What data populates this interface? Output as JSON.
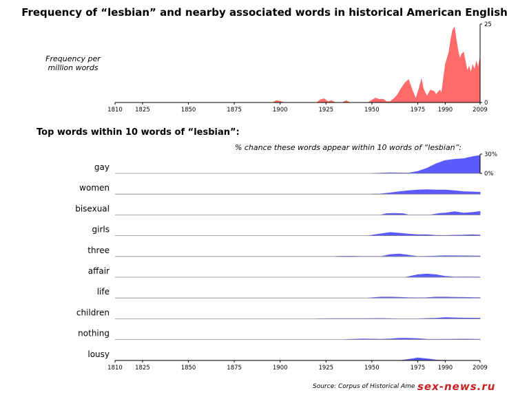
{
  "title": "Frequency of “lesbian” and nearby associated words in historical American English",
  "watermark": "sex-news.ru",
  "chart_data": [
    {
      "type": "area",
      "ylabel": "Frequency per million words",
      "color": "#ff6a6a",
      "xlim": [
        1810,
        2009
      ],
      "ylim": [
        0,
        25
      ],
      "yticks": [
        "25",
        "0"
      ],
      "xticks": [
        "1810",
        "1825",
        "1850",
        "1875",
        "1900",
        "1925",
        "1950",
        "1975",
        "1990",
        "2009"
      ],
      "x": [
        1896,
        1898,
        1900,
        1902,
        1920,
        1922,
        1924,
        1926,
        1928,
        1930,
        1934,
        1936,
        1938,
        1948,
        1950,
        1952,
        1954,
        1956,
        1958,
        1960,
        1962,
        1964,
        1966,
        1968,
        1970,
        1972,
        1974,
        1976,
        1977,
        1978,
        1980,
        1982,
        1984,
        1985,
        1987,
        1988,
        1990,
        1992,
        1993,
        1994,
        1995,
        1996,
        1997,
        1998,
        1999,
        2000,
        2001,
        2002,
        2003,
        2004,
        2005,
        2006,
        2007,
        2008,
        2009
      ],
      "values": [
        0,
        0.6,
        0.4,
        0,
        0,
        0.9,
        1.2,
        0.3,
        0.6,
        0,
        0,
        0.6,
        0,
        0,
        0.8,
        1.4,
        1.0,
        1.1,
        0.3,
        0.3,
        1.2,
        2.5,
        4.5,
        6.2,
        7.3,
        4.0,
        1.2,
        5.0,
        7.5,
        4.5,
        2.0,
        4.0,
        3.5,
        2.5,
        4.0,
        3.0,
        12.0,
        16.0,
        20.0,
        23.0,
        24.0,
        20.0,
        16.5,
        14.0,
        15.5,
        16.0,
        13.0,
        10.0,
        11.5,
        9.5,
        12.0,
        10.5,
        13.0,
        11.0,
        14.5
      ]
    },
    {
      "type": "area",
      "subtitle": "Top words within 10 words of “lesbian”:",
      "ylabel": "% chance these words appear within 10 words of “lesbian”:",
      "color": "#5a5aff",
      "xlim": [
        1810,
        2009
      ],
      "ylim": [
        0,
        30
      ],
      "yticks": [
        "30%",
        "0%"
      ],
      "xticks": [
        "1810",
        "1825",
        "1850",
        "1875",
        "1900",
        "1925",
        "1950",
        "1975",
        "1990",
        "2009"
      ],
      "series": [
        {
          "name": "gay",
          "x": [
            1950,
            1960,
            1970,
            1975,
            1980,
            1985,
            1990,
            1995,
            2000,
            2005,
            2009
          ],
          "values": [
            0,
            1,
            0.5,
            3,
            8,
            15,
            20,
            22,
            23,
            26,
            28
          ]
        },
        {
          "name": "women",
          "x": [
            1950,
            1955,
            1960,
            1965,
            1970,
            1975,
            1980,
            1985,
            1990,
            1995,
            2000,
            2005,
            2009
          ],
          "values": [
            0,
            0.4,
            2,
            4,
            5.5,
            6.5,
            7,
            6.5,
            6.5,
            5.5,
            4,
            3.5,
            3
          ]
        },
        {
          "name": "bisexual",
          "x": [
            1955,
            1958,
            1962,
            1967,
            1970,
            1978,
            1982,
            1987,
            1990,
            1995,
            2000,
            2005,
            2009
          ],
          "values": [
            0,
            2,
            2.5,
            2,
            0,
            0,
            0,
            2.5,
            3,
            5,
            3,
            4,
            5.5
          ]
        },
        {
          "name": "girls",
          "x": [
            1948,
            1955,
            1960,
            1965,
            1970,
            1975,
            1980,
            1985,
            1990,
            1995,
            2000,
            2005,
            2009
          ],
          "values": [
            0,
            3,
            5,
            4,
            2.5,
            1.5,
            1.5,
            0.5,
            0.3,
            0.8,
            1,
            1.5,
            1
          ]
        },
        {
          "name": "three",
          "x": [
            1930,
            1935,
            1940,
            1945,
            1955,
            1960,
            1965,
            1970,
            1975,
            1980,
            1985,
            1990,
            2000,
            2009
          ],
          "values": [
            0,
            0.4,
            0.4,
            0,
            0,
            3,
            4,
            2,
            0,
            0.3,
            0.8,
            1.2,
            1,
            0.8
          ]
        },
        {
          "name": "affair",
          "x": [
            1968,
            1970,
            1975,
            1980,
            1985,
            1990,
            1995,
            2000,
            2009
          ],
          "values": [
            0,
            1,
            4,
            5,
            4,
            1.5,
            0.3,
            0.5,
            0.3
          ]
        },
        {
          "name": "life",
          "x": [
            1948,
            1955,
            1960,
            1965,
            1970,
            1975,
            1980,
            1985,
            1990,
            1995,
            2000,
            2005,
            2009
          ],
          "values": [
            0,
            1.5,
            1.5,
            1.2,
            0.5,
            0.3,
            0.5,
            1.5,
            1.5,
            1.2,
            1,
            0.8,
            0.5
          ]
        },
        {
          "name": "children",
          "x": [
            1920,
            1930,
            1935,
            1945,
            1955,
            1960,
            1965,
            1975,
            1980,
            1985,
            1990,
            1995,
            2000,
            2009
          ],
          "values": [
            0,
            0.3,
            0.3,
            0.2,
            0.5,
            0.3,
            0,
            0,
            0.5,
            1,
            2,
            1.5,
            1.2,
            1
          ]
        },
        {
          "name": "nothing",
          "x": [
            1935,
            1940,
            1945,
            1950,
            1955,
            1960,
            1965,
            1970,
            1975,
            1980,
            1985,
            1990,
            2000,
            2009
          ],
          "values": [
            0,
            0.5,
            1,
            0.8,
            0.5,
            1,
            2,
            2,
            1.5,
            0.5,
            0.3,
            0.5,
            0.8,
            0.5
          ]
        },
        {
          "name": "lousy",
          "x": [
            1966,
            1970,
            1975,
            1980,
            1985,
            1990
          ],
          "values": [
            0,
            1.5,
            4,
            2.5,
            0.5,
            0
          ]
        }
      ],
      "source": "Source: Corpus of Historical Ame"
    }
  ]
}
